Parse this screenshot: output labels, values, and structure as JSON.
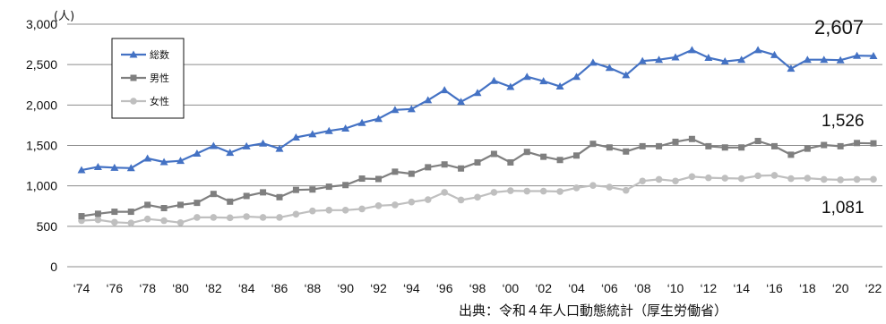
{
  "chart_data": {
    "type": "line",
    "y_unit": "(人)",
    "ylim": [
      0,
      3000
    ],
    "yticks": [
      "0",
      "500",
      "1,000",
      "1,500",
      "2,000",
      "2,500",
      "3,000"
    ],
    "x": [
      1974,
      1975,
      1976,
      1977,
      1978,
      1979,
      1980,
      1981,
      1982,
      1983,
      1984,
      1985,
      1986,
      1987,
      1988,
      1989,
      1990,
      1991,
      1992,
      1993,
      1994,
      1995,
      1996,
      1997,
      1998,
      1999,
      2000,
      2001,
      2002,
      2003,
      2004,
      2005,
      2006,
      2007,
      2008,
      2009,
      2010,
      2011,
      2012,
      2013,
      2014,
      2015,
      2016,
      2017,
      2018,
      2019,
      2020,
      2021,
      2022
    ],
    "xtick_labels": [
      "‘74",
      "‘76",
      "‘78",
      "‘80",
      "‘82",
      "‘84",
      "‘86",
      "‘88",
      "‘90",
      "‘92",
      "‘94",
      "‘96",
      "‘98",
      "‘00",
      "‘02",
      "‘04",
      "‘06",
      "‘08",
      "‘10",
      "‘12",
      "‘14",
      "‘16",
      "‘18",
      "‘20",
      "‘22"
    ],
    "grid": "horizontal",
    "legend_position": "top-left",
    "series": [
      {
        "name": "総数",
        "color": "#4472C4",
        "marker": "triangle",
        "values": [
          1195,
          1235,
          1225,
          1220,
          1340,
          1295,
          1310,
          1400,
          1495,
          1410,
          1490,
          1525,
          1460,
          1600,
          1640,
          1680,
          1710,
          1780,
          1830,
          1940,
          1950,
          2060,
          2185,
          2040,
          2150,
          2300,
          2225,
          2350,
          2295,
          2230,
          2350,
          2525,
          2460,
          2370,
          2545,
          2560,
          2590,
          2680,
          2585,
          2540,
          2560,
          2680,
          2620,
          2450,
          2560,
          2560,
          2555,
          2610,
          2607
        ],
        "end_label": "2,607"
      },
      {
        "name": "男性",
        "color": "#7F7F7F",
        "marker": "square",
        "values": [
          625,
          655,
          680,
          680,
          765,
          725,
          765,
          790,
          900,
          805,
          875,
          920,
          860,
          950,
          955,
          990,
          1010,
          1090,
          1085,
          1175,
          1150,
          1230,
          1265,
          1215,
          1290,
          1395,
          1290,
          1420,
          1360,
          1320,
          1375,
          1520,
          1475,
          1425,
          1490,
          1490,
          1545,
          1580,
          1490,
          1475,
          1475,
          1555,
          1490,
          1385,
          1460,
          1505,
          1490,
          1530,
          1526
        ],
        "end_label": "1,526"
      },
      {
        "name": "女性",
        "color": "#BFBFBF",
        "marker": "circle",
        "values": [
          570,
          580,
          550,
          540,
          590,
          570,
          545,
          610,
          610,
          605,
          620,
          610,
          610,
          650,
          690,
          700,
          700,
          715,
          755,
          765,
          800,
          830,
          920,
          825,
          860,
          920,
          940,
          935,
          935,
          930,
          975,
          1005,
          985,
          945,
          1060,
          1080,
          1060,
          1115,
          1100,
          1095,
          1090,
          1125,
          1130,
          1090,
          1095,
          1080,
          1075,
          1080,
          1081
        ],
        "end_label": "1,081"
      }
    ]
  },
  "source": "出典：令和４年人口動態統計（厚生労働省）"
}
